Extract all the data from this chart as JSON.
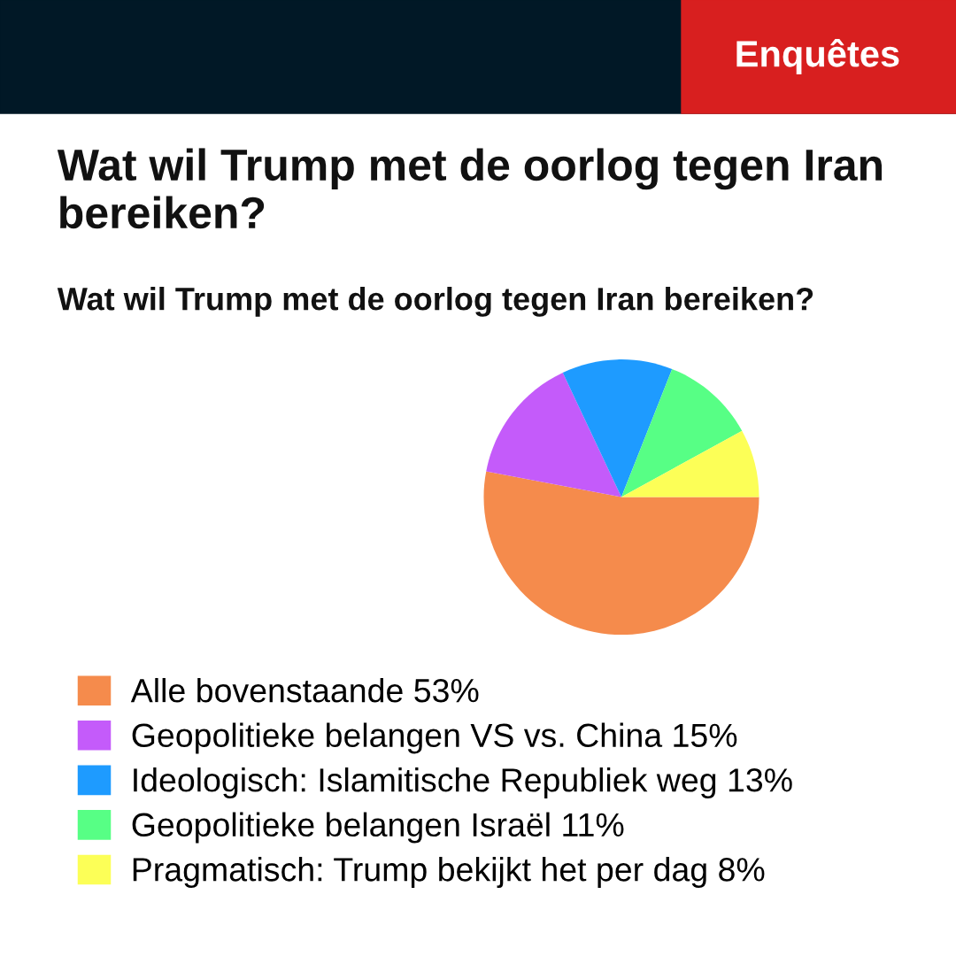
{
  "chart_data": {
    "type": "pie",
    "title": "Wat wil Trump met de oorlog tegen Iran bereiken?",
    "subtitle": "Wat wil Trump met de oorlog tegen Iran bereiken?",
    "annotations": [
      "Enquêtes"
    ],
    "categories": [
      "Alle bovenstaande",
      "Geopolitieke belangen VS vs. China",
      "Ideologisch: Islamitische Republiek weg",
      "Geopolitieke belangen Israël",
      "Pragmatisch: Trump bekijkt het per dag"
    ],
    "values": [
      53,
      15,
      13,
      11,
      8
    ],
    "value_labels": [
      "53%",
      "15%",
      "13%",
      "11%",
      "8%"
    ],
    "colors": [
      "#f58b4c",
      "#c45bfa",
      "#1e9bff",
      "#57ff85",
      "#fcff57"
    ],
    "legend": "left"
  }
}
